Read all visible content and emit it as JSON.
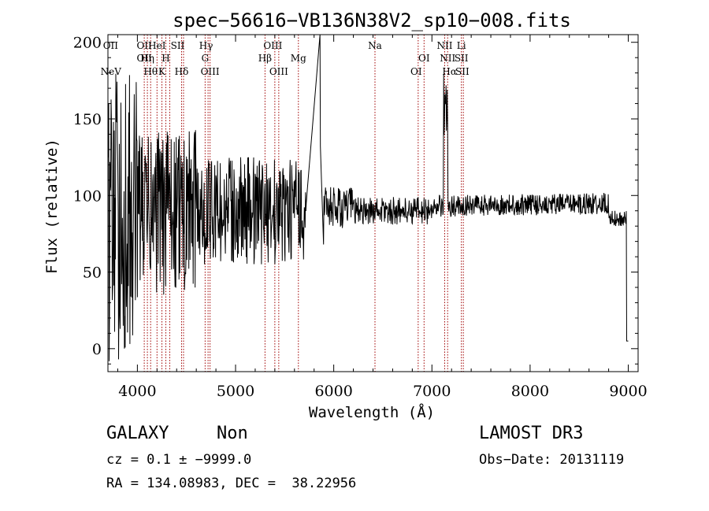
{
  "chart_data": {
    "type": "line",
    "title": "spec−56616−VB136N38V2_sp10−008.fits",
    "xlabel": "Wavelength (Å)",
    "ylabel": "Flux (relative)",
    "xlim": [
      3700,
      9100
    ],
    "ylim": [
      -15,
      205
    ],
    "xticks": [
      4000,
      5000,
      6000,
      7000,
      8000,
      9000
    ],
    "yticks": [
      0,
      50,
      100,
      150,
      200
    ],
    "line_color": "#000000",
    "marker_color": "#a00000",
    "emission_lines": [
      {
        "label": "NeV",
        "x": 3730,
        "row": 3
      },
      {
        "label": "OII",
        "x": 3727,
        "row": 1
      },
      {
        "label": "OII",
        "x": 4070,
        "row": 1
      },
      {
        "label": "OII",
        "x": 4070,
        "row": 2
      },
      {
        "label": "Hη",
        "x": 4102,
        "row": 2
      },
      {
        "label": "Hθ",
        "x": 4135,
        "row": 3
      },
      {
        "label": "HeI",
        "x": 4200,
        "row": 1
      },
      {
        "label": "H",
        "x": 4290,
        "row": 2
      },
      {
        "label": "K",
        "x": 4250,
        "row": 3
      },
      {
        "label": "SII",
        "x": 4410,
        "row": 1
      },
      {
        "label": "Hδ",
        "x": 4450,
        "row": 3
      },
      {
        "label": "Hγ",
        "x": 4700,
        "row": 1
      },
      {
        "label": "G",
        "x": 4690,
        "row": 2
      },
      {
        "label": "OIII",
        "x": 4740,
        "row": 3
      },
      {
        "label": "OIII",
        "x": 5380,
        "row": 1
      },
      {
        "label": "Hβ",
        "x": 5300,
        "row": 2
      },
      {
        "label": "OIII",
        "x": 5440,
        "row": 3
      },
      {
        "label": "Mg",
        "x": 5640,
        "row": 2
      },
      {
        "label": "Na",
        "x": 6420,
        "row": 1
      },
      {
        "label": "OI",
        "x": 6920,
        "row": 2
      },
      {
        "label": "OI",
        "x": 6840,
        "row": 3
      },
      {
        "label": "NII",
        "x": 7130,
        "row": 1
      },
      {
        "label": "Li",
        "x": 7300,
        "row": 1
      },
      {
        "label": "NII",
        "x": 7160,
        "row": 2
      },
      {
        "label": "SII",
        "x": 7300,
        "row": 2
      },
      {
        "label": "Hα",
        "x": 7180,
        "row": 3
      },
      {
        "label": "SII",
        "x": 7310,
        "row": 3
      }
    ],
    "marker_lines": [
      4070,
      4102,
      4135,
      4200,
      4250,
      4290,
      4330,
      4450,
      4470,
      4690,
      4720,
      4740,
      5300,
      5400,
      5440,
      5640,
      6420,
      6860,
      6920,
      7130,
      7160,
      7300,
      7320
    ]
  },
  "info": {
    "type": "GALAXY",
    "subclass": "Non",
    "survey": "LAMOST DR3",
    "cz": "cz = 0.1 ± −9999.0",
    "obs_date": "Obs−Date: 20131119",
    "coords": "RA = 134.08983, DEC =  38.22956"
  }
}
